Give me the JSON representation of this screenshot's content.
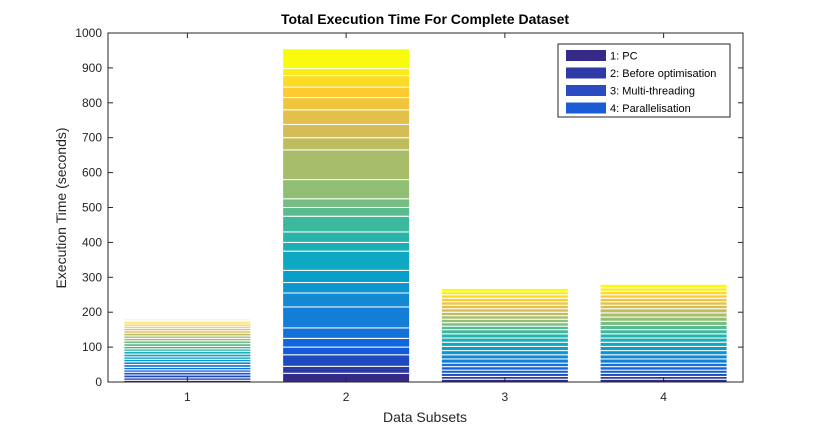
{
  "chart_data": {
    "type": "bar",
    "stacked": true,
    "title": "Total Execution Time For Complete Dataset",
    "xlabel": "Data Subsets",
    "ylabel": "Execution Time (seconds)",
    "categories": [
      "1",
      "2",
      "3",
      "4"
    ],
    "ylim": [
      0,
      1000
    ],
    "yticks": [
      0,
      100,
      200,
      300,
      400,
      500,
      600,
      700,
      800,
      900,
      1000
    ],
    "legend": {
      "position": "top-right"
    },
    "colormap": [
      "#352a87",
      "#0f5cdd",
      "#1481d6",
      "#06a4ca",
      "#2eb7a4",
      "#87bf77",
      "#d1bb59",
      "#fec832",
      "#f9fb0e"
    ],
    "series": [
      {
        "name": "1: PC",
        "values": [
          180,
          955,
          268,
          280
        ]
      },
      {
        "name": "2: Before optimisation",
        "values": [
          0,
          0,
          0,
          0
        ]
      },
      {
        "name": "3: Multi-threading",
        "values": [
          0,
          0,
          0,
          0
        ]
      },
      {
        "name": "4: Parallelisation",
        "values": [
          0,
          0,
          0,
          0
        ]
      }
    ],
    "legend_colors": [
      "#352a87",
      "#2e3aa6",
      "#2a4bc2",
      "#1b5cd6"
    ],
    "segment_boundaries": [
      [
        0,
        5,
        12,
        20,
        28,
        35,
        42,
        50,
        58,
        65,
        72,
        80,
        88,
        95,
        102,
        110,
        118,
        125,
        132,
        140,
        147,
        154,
        160,
        166,
        172,
        176,
        180
      ],
      [
        0,
        25,
        45,
        78,
        100,
        125,
        155,
        215,
        255,
        285,
        320,
        375,
        400,
        430,
        475,
        500,
        525,
        580,
        665,
        700,
        738,
        780,
        815,
        845,
        878,
        898,
        955
      ],
      [
        0,
        8,
        16,
        25,
        34,
        44,
        54,
        66,
        78,
        90,
        102,
        114,
        126,
        138,
        150,
        160,
        170,
        180,
        190,
        200,
        210,
        220,
        230,
        240,
        250,
        259,
        268
      ],
      [
        0,
        8,
        16,
        25,
        34,
        44,
        54,
        66,
        78,
        90,
        102,
        114,
        126,
        138,
        150,
        162,
        174,
        186,
        198,
        210,
        220,
        230,
        240,
        250,
        260,
        270,
        280
      ]
    ]
  }
}
